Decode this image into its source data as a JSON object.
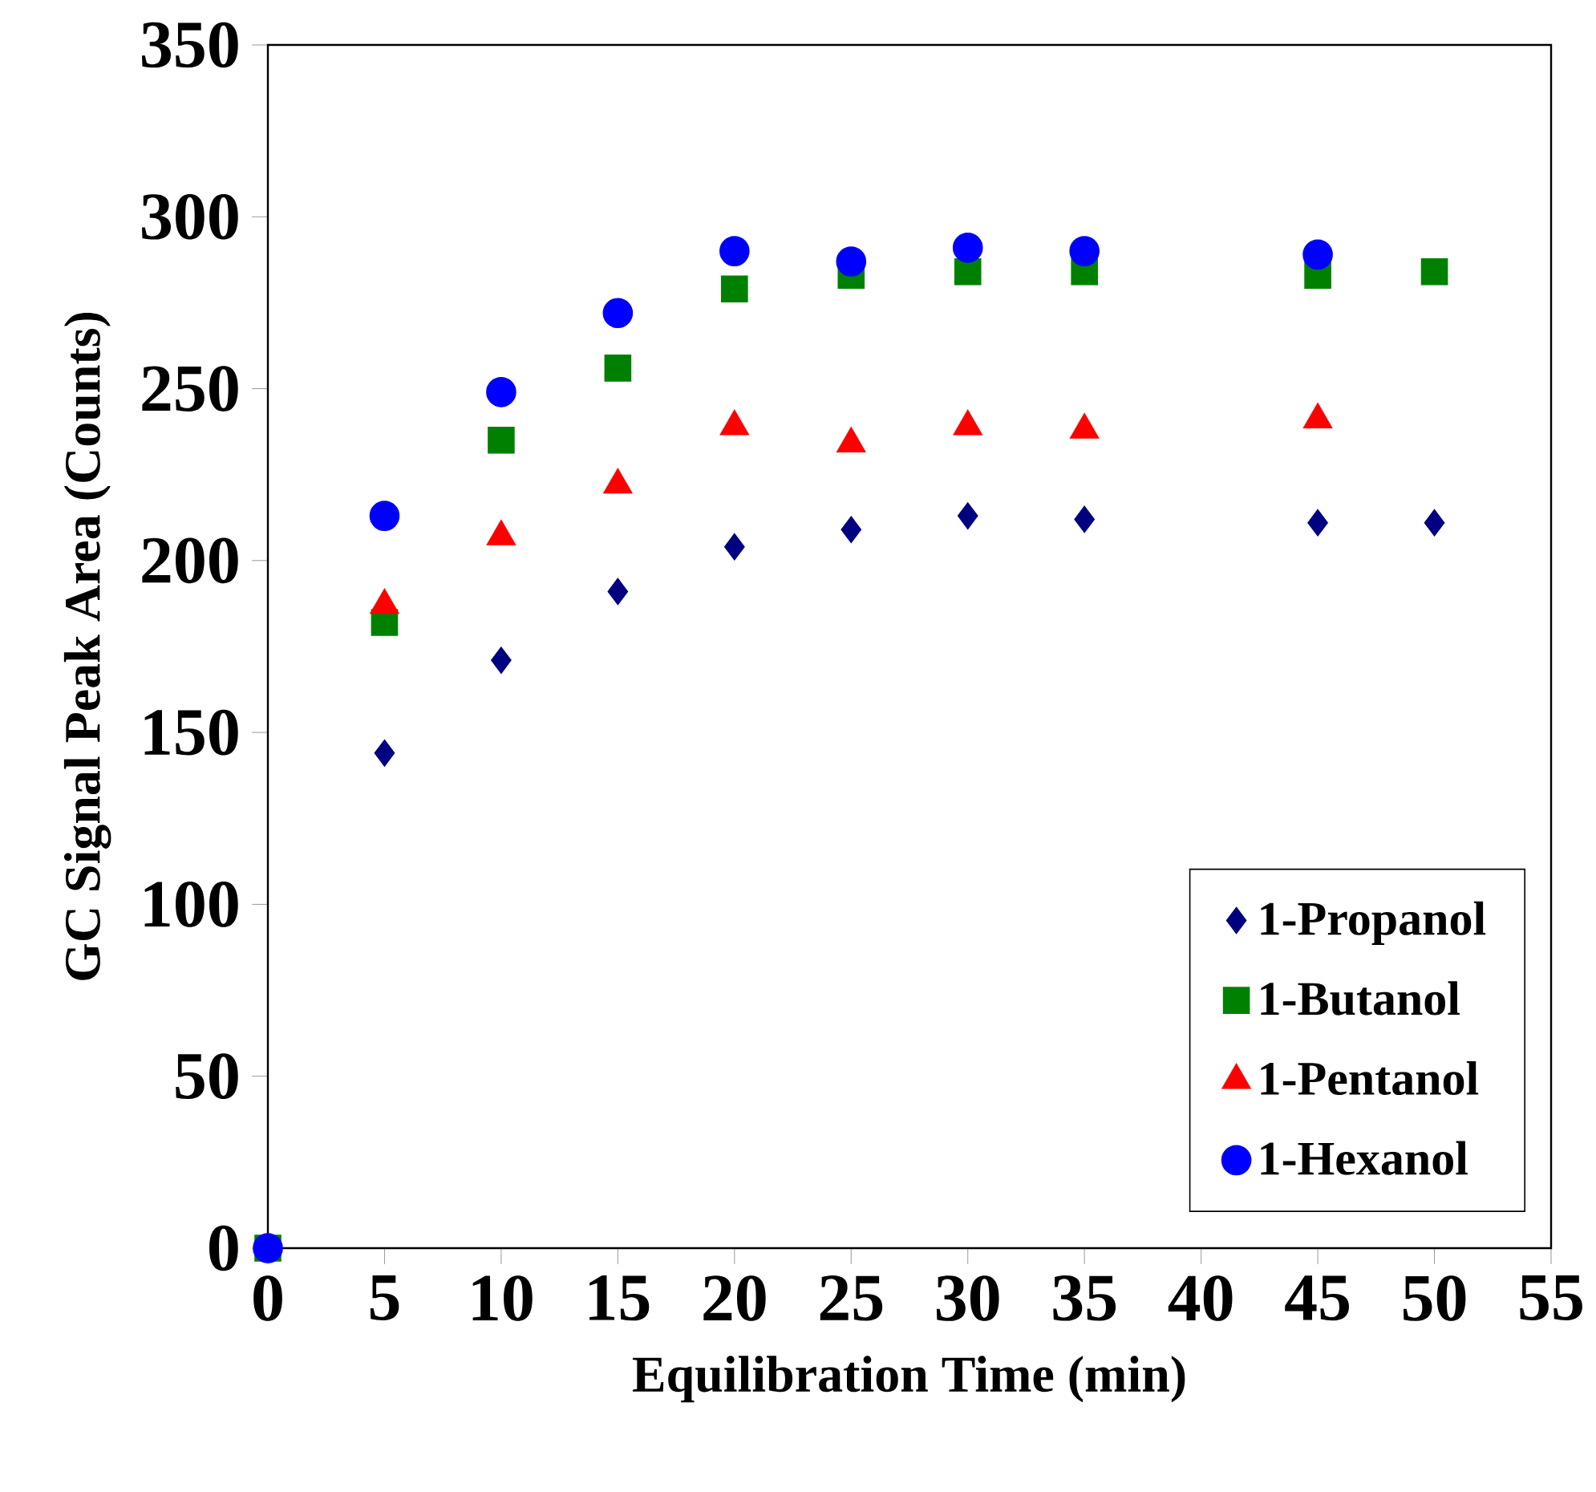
{
  "chart_data": {
    "type": "scatter",
    "xlabel": "Equilibration Time (min)",
    "ylabel": "GC Signal Peak Area (Counts)",
    "x": [
      0,
      5,
      10,
      15,
      20,
      25,
      30,
      35,
      45,
      50
    ],
    "series": [
      {
        "name": "1-Propanol",
        "color": "#000080",
        "marker": "diamond",
        "values": [
          null,
          144,
          171,
          191,
          204,
          209,
          213,
          212,
          211,
          211
        ]
      },
      {
        "name": "1-Butanol",
        "color": "#008000",
        "marker": "square",
        "values": [
          0,
          182,
          235,
          256,
          279,
          283,
          284,
          284,
          283,
          284
        ]
      },
      {
        "name": "1-Pentanol",
        "color": "#ff0000",
        "marker": "triangle",
        "values": [
          null,
          187,
          207,
          222,
          239,
          234,
          239,
          238,
          241,
          null
        ]
      },
      {
        "name": "1-Hexanol",
        "color": "#0000ff",
        "marker": "circle",
        "values": [
          0,
          213,
          249,
          272,
          290,
          287,
          291,
          290,
          289,
          null
        ]
      }
    ],
    "xlim": [
      0,
      55
    ],
    "xticks": [
      0,
      5,
      10,
      15,
      20,
      25,
      30,
      35,
      40,
      45,
      50,
      55
    ],
    "ylim": [
      0,
      350
    ],
    "yticks": [
      0,
      50,
      100,
      150,
      200,
      250,
      300,
      350
    ],
    "grid": false,
    "legend": "bottom right"
  }
}
